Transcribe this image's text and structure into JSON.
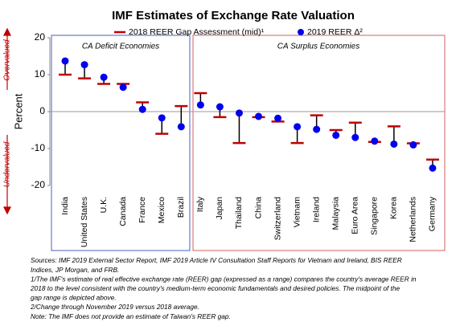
{
  "chart_data": {
    "type": "dot-range",
    "title": "IMF Estimates of Exchange Rate Valuation",
    "y_label": "Percent",
    "over_label": "Overvalued",
    "under_label": "Undervalued",
    "categories": [
      "India",
      "United States",
      "U.K.",
      "Canada",
      "France",
      "Mexico",
      "Brazil",
      "Italy",
      "Japan",
      "Thailand",
      "China",
      "Switzerland",
      "Vietnam",
      "Ireland",
      "Malaysia",
      "Euro Area",
      "Singapore",
      "Korea",
      "Netherlands",
      "Germany"
    ],
    "series": [
      {
        "name": "2018 REER Gap Assessment (mid)¹",
        "color": "#c00000",
        "values": [
          10,
          9,
          7.5,
          7.5,
          2.5,
          -6,
          1.5,
          5,
          -1.5,
          -8.5,
          -1.5,
          -2.7,
          -8.5,
          -1,
          -5,
          -3,
          -8.2,
          -4,
          -8.6,
          -13
        ]
      },
      {
        "name": "2019 REER Δ²",
        "color": "#0000ee",
        "values": [
          13.7,
          12.7,
          9.3,
          6.6,
          0.6,
          -1.7,
          -4.1,
          1.8,
          1.3,
          -0.4,
          -1.3,
          -1.8,
          -4.1,
          -4.8,
          -6.4,
          -7,
          -8,
          -8.8,
          -9,
          -15.3
        ]
      }
    ],
    "groups": [
      {
        "label": "CA Deficit Economies",
        "color": "#4a5fc1"
      },
      {
        "label": "CA Surplus Economies",
        "color": "#d06060"
      }
    ],
    "ylim": [
      -20,
      20
    ],
    "yticks": [
      -20,
      -10,
      0,
      10,
      20
    ],
    "footnotes": [
      "Sources: IMF 2019 External Sector Report, IMF 2019 Article IV Consultation Staff Reports for Vietnam and Ireland, BIS REER",
      "Indices, JP Morgan, and FRB.",
      "1/The IMF's estimate of real effective exchange rate (REER) gap (expressed as a range) compares the country's average REER in",
      "2018 to the level consistent with the country's medium-term economic fundamentals and desired policies.  The midpoint of the",
      "gap range is depicted above.",
      "2/Change through November 2019 versus 2018 average.",
      "Note:  The IMF does not provide an estimate of Taiwan's REER gap."
    ]
  }
}
